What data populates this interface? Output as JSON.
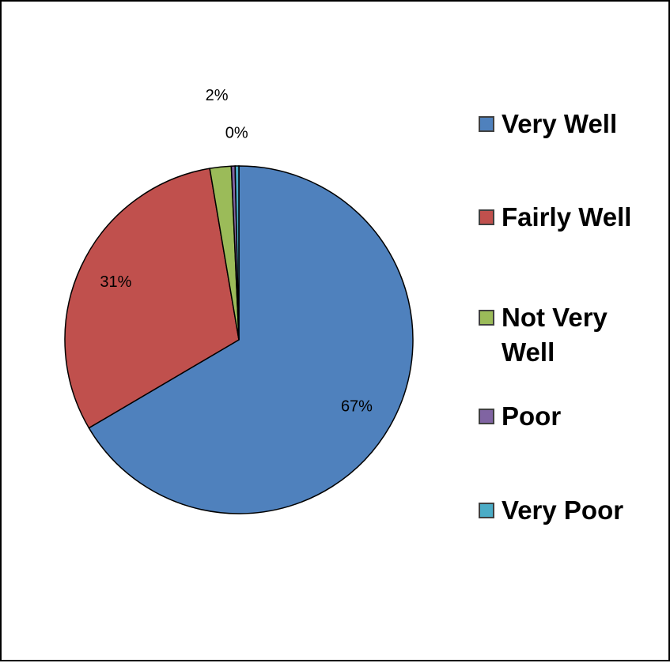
{
  "chart_data": {
    "type": "pie",
    "title": "",
    "categories": [
      "Very Well",
      "Fairly Well",
      "Not Very Well",
      "Poor",
      "Very Poor"
    ],
    "values": [
      67,
      31,
      2,
      0,
      0
    ],
    "labels": [
      "67%",
      "31%",
      "2%",
      "",
      "0%"
    ],
    "legend": {
      "position": "right",
      "entries": [
        "Very Well",
        "Fairly Well",
        "Not Very Well",
        "Poor",
        "Very Poor"
      ]
    }
  },
  "colors": {
    "Very Well": "#4F81BD",
    "Fairly Well": "#C0504D",
    "Not Very Well": "#9BBB59",
    "Poor": "#8064A2",
    "Very Poor": "#4BACC6",
    "outline": "#000000"
  }
}
